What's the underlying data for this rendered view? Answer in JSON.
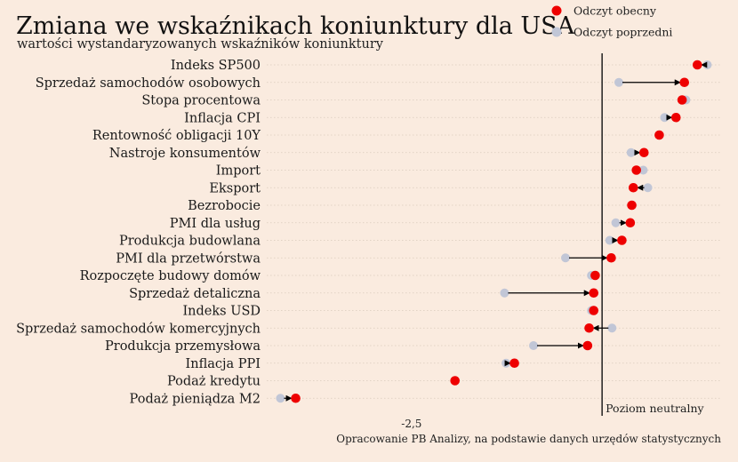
{
  "chart_data": {
    "type": "dot-arrow",
    "title": "Zmiana we wskaźnikach koniunktury dla USA",
    "subtitle": "wartości wystandaryzowanych wskaźników koniunktury",
    "legend": [
      {
        "name": "Odczyt obecny",
        "color": "#ee0000"
      },
      {
        "name": "Odczyt poprzedni",
        "color": "#c1c6d6"
      }
    ],
    "legend_position": "top-right",
    "categories": [
      "Indeks SP500",
      "Sprzedaż samochodów osobowych",
      "Stopa procentowa",
      "Inflacja CPI",
      "Rentowność obligacji 10Y",
      "Nastroje konsumentów",
      "Import",
      "Eksport",
      "Bezrobocie",
      "PMI dla usług",
      "Produkcja budowlana",
      "PMI dla przetwórstwa",
      "Rozpoczęte budowy domów",
      "Sprzedaż detaliczna",
      "Indeks USD",
      "Sprzedaż samochodów komercyjnych",
      "Produkcja przemysłowa",
      "Inflacja PPI",
      "Podaż kredytu",
      "Podaż pieniądza M2"
    ],
    "series": [
      {
        "name": "Odczyt obecny",
        "values": [
          1.25,
          1.08,
          1.05,
          0.97,
          0.75,
          0.55,
          0.45,
          0.41,
          0.39,
          0.37,
          0.26,
          0.12,
          -0.09,
          -0.11,
          -0.11,
          -0.17,
          -0.19,
          -1.15,
          -1.93,
          -4.02
        ]
      },
      {
        "name": "Odczyt poprzedni",
        "values": [
          1.38,
          0.22,
          1.1,
          0.82,
          0.75,
          0.38,
          0.54,
          0.6,
          0.39,
          0.18,
          0.1,
          -0.48,
          -0.14,
          -1.28,
          -0.14,
          0.13,
          -0.9,
          -1.26,
          -1.93,
          -4.22
        ]
      }
    ],
    "xlim": [
      -4.4,
      1.55
    ],
    "xticks": [
      -2.5
    ],
    "xtick_labels": [
      "-2,5"
    ],
    "reference_line": {
      "x": 0,
      "label": "Poziom neutralny"
    },
    "grid": "horizontal dotted",
    "source": "Opracowanie PB Analizy, na podstawie danych urzędów statystycznych"
  }
}
